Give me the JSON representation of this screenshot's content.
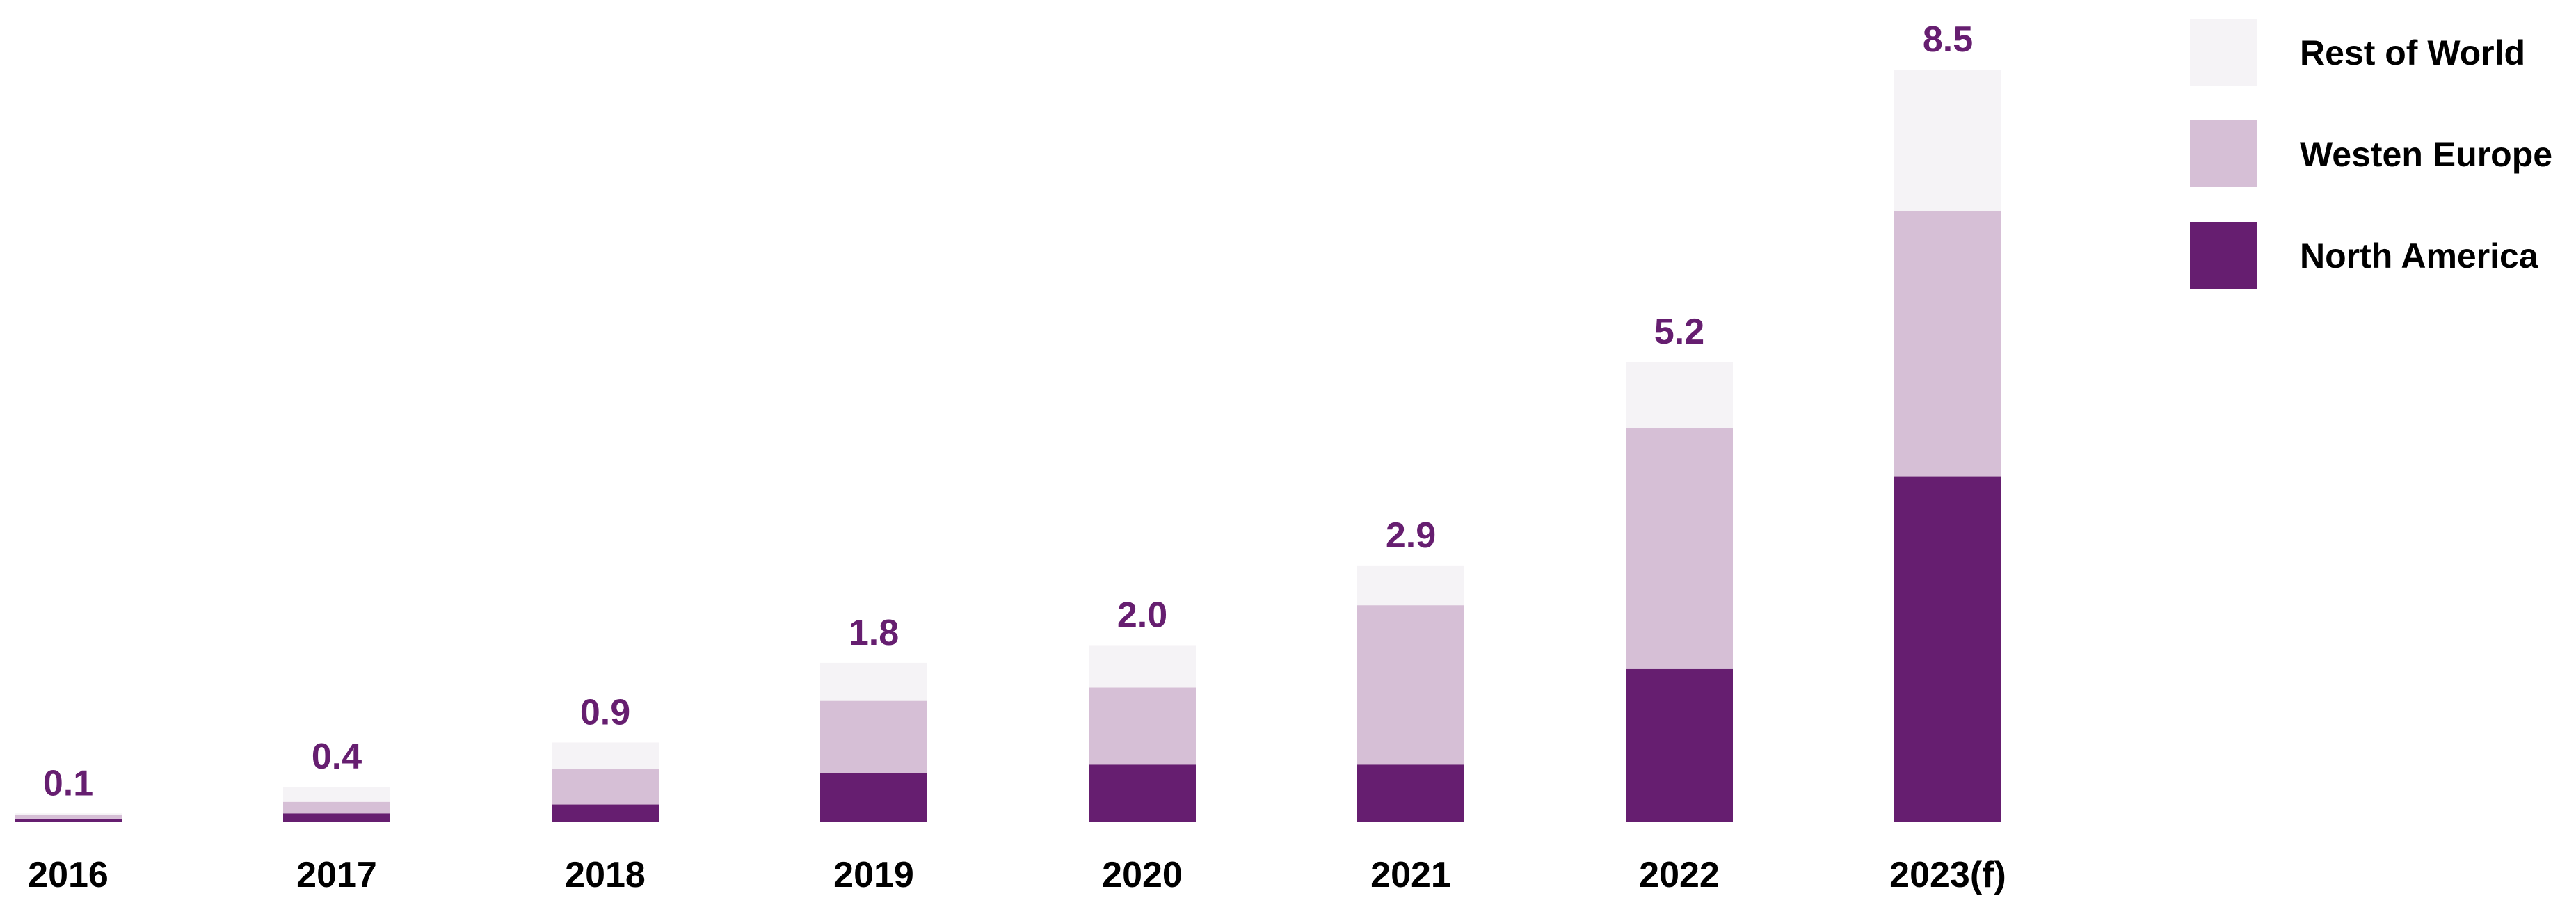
{
  "chart_data": {
    "type": "bar",
    "stacked": true,
    "categories": [
      "2016",
      "2017",
      "2018",
      "2019",
      "2020",
      "2021",
      "2022",
      "2023(f)"
    ],
    "totals": [
      "0.1",
      "0.4",
      "0.9",
      "1.8",
      "2.0",
      "2.9",
      "5.2",
      "8.5"
    ],
    "series": [
      {
        "name": "North America",
        "color": "#661e70",
        "values": [
          0.04,
          0.1,
          0.2,
          0.55,
          0.65,
          0.65,
          1.73,
          3.9
        ]
      },
      {
        "name": "Westen Europe",
        "color": "#d6bfd6",
        "values": [
          0.04,
          0.13,
          0.4,
          0.82,
          0.87,
          1.8,
          2.72,
          3.0
        ]
      },
      {
        "name": "Rest of World",
        "color": "#f5f3f6",
        "values": [
          0.02,
          0.17,
          0.3,
          0.43,
          0.48,
          0.45,
          0.75,
          1.6
        ]
      }
    ],
    "legend_order": [
      "Rest of World",
      "Westen Europe",
      "North America"
    ],
    "legend_position": "top-right",
    "ylim": [
      0,
      8.5
    ],
    "grid": false,
    "title": "",
    "xlabel": "",
    "ylabel": ""
  }
}
